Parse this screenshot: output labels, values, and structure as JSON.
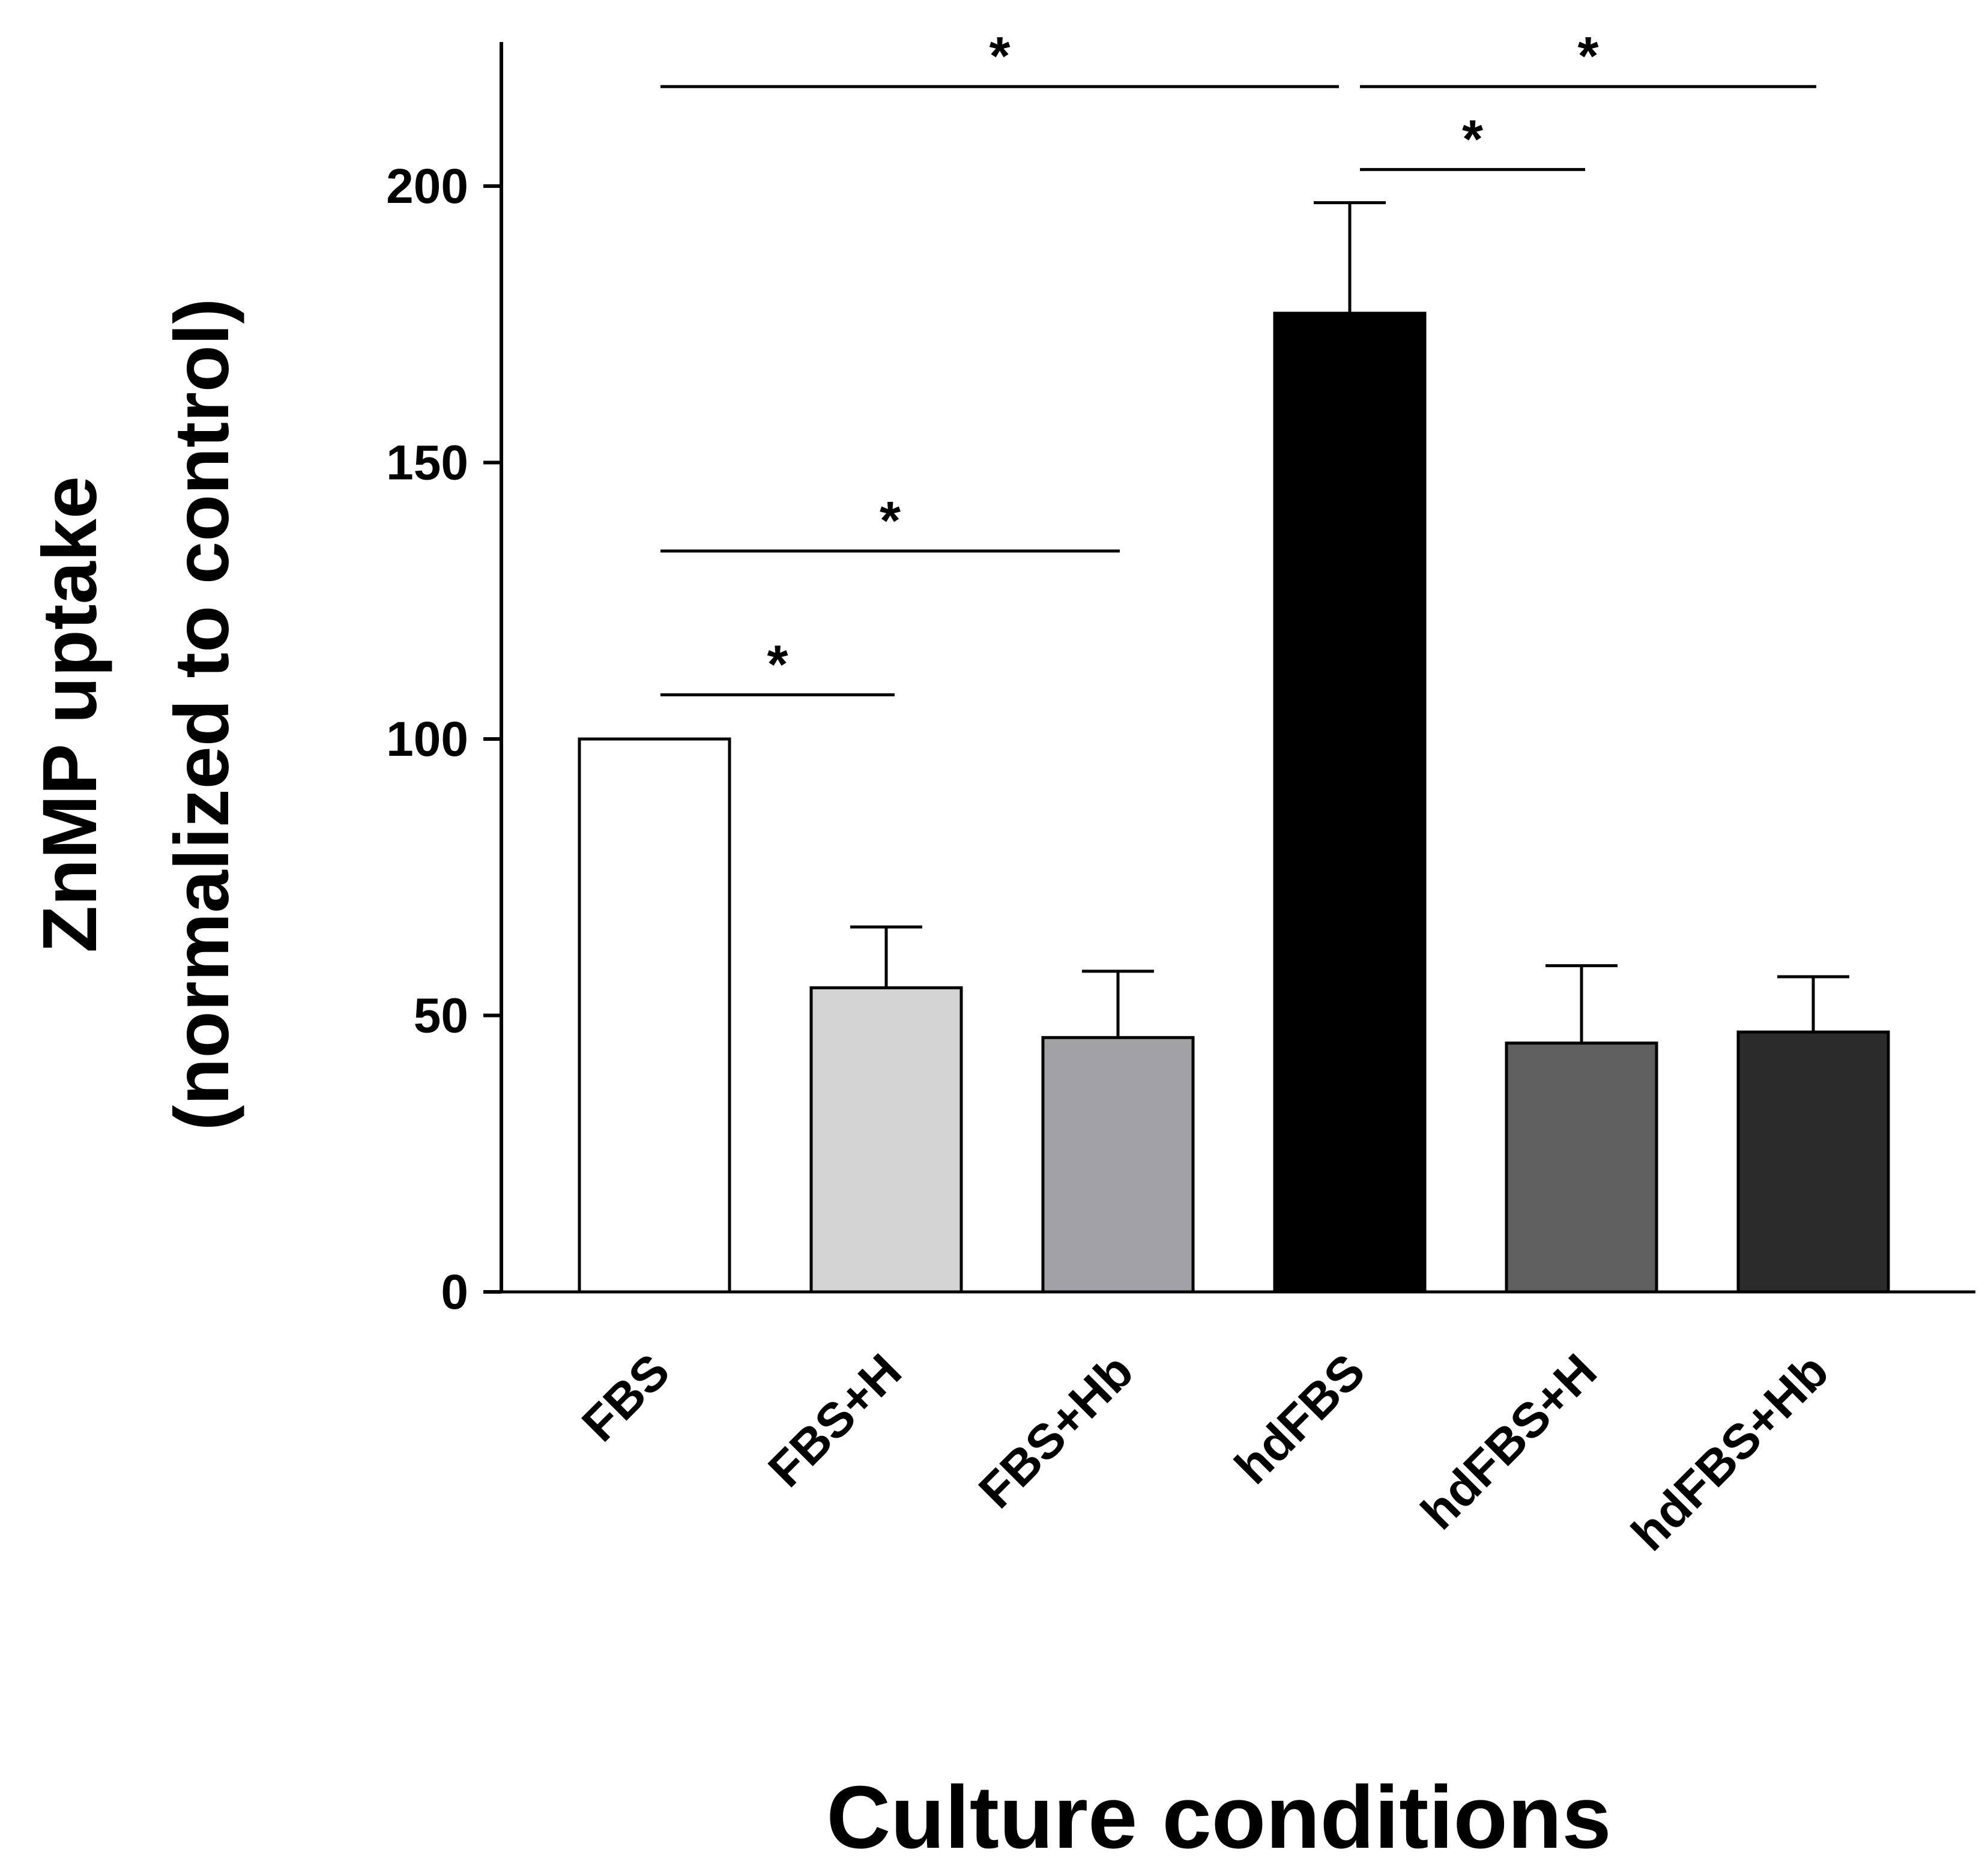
{
  "chart_data": {
    "type": "bar",
    "title": "",
    "xlabel": "Culture conditions",
    "ylabel_line1": "ZnMP uptake",
    "ylabel_line2": "(normalized to control)",
    "categories": [
      "FBS",
      "FBS+H",
      "FBS+Hb",
      "hdFBS",
      "hdFBS+H",
      "hdFBS+Hb"
    ],
    "values": [
      100,
      55,
      46,
      177,
      45,
      47
    ],
    "errors": [
      0,
      11,
      12,
      20,
      14,
      10
    ],
    "bar_colors": [
      "#ffffff",
      "#d4d4d4",
      "#a2a1a5",
      "#000000",
      "#5f5f5f",
      "#2b2b2b"
    ],
    "yticks": [
      0,
      50,
      100,
      150,
      200
    ],
    "ylim": [
      0,
      225
    ],
    "significance": [
      {
        "from": "FBS",
        "to": "FBS+H",
        "label": "*"
      },
      {
        "from": "FBS",
        "to": "FBS+Hb",
        "label": "*"
      },
      {
        "from": "FBS",
        "to": "hdFBS",
        "label": "*"
      },
      {
        "from": "hdFBS",
        "to": "hdFBS+H",
        "label": "*"
      },
      {
        "from": "hdFBS",
        "to": "hdFBS+Hb",
        "label": "*"
      }
    ]
  }
}
